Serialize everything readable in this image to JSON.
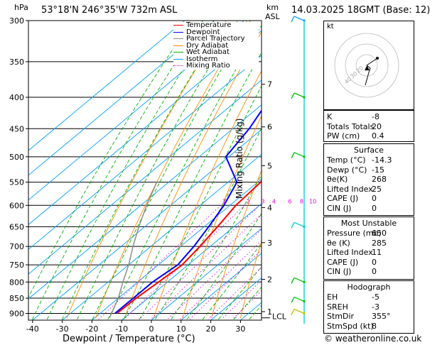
{
  "header": {
    "location": "53°18'N  246°35'W  732m  ASL",
    "datetime": "14.03.2025  18GMT  (Base: 12)",
    "pressure_unit": "hPa",
    "km_label": "km",
    "asl_label": "ASL"
  },
  "legend": [
    {
      "label": "Temperature",
      "color": "#ff0000",
      "style": "solid"
    },
    {
      "label": "Dewpoint",
      "color": "#0000ff",
      "style": "solid"
    },
    {
      "label": "Parcel Trajectory",
      "color": "#8c8c8c",
      "style": "solid"
    },
    {
      "label": "Dry Adiabat",
      "color": "#ff8c00",
      "style": "solid"
    },
    {
      "label": "Wet Adiabat",
      "color": "#00b000",
      "style": "solid"
    },
    {
      "label": "Isotherm",
      "color": "#00a0ff",
      "style": "solid"
    },
    {
      "label": "Mixing Ratio",
      "color": "#e000e0",
      "style": "dotted"
    }
  ],
  "chart_data": {
    "type": "line",
    "subtype": "skew-T log-P diagram",
    "xlabel": "Dewpoint / Temperature (°C)",
    "ylabel": "Mixing Ratio (g/kg)",
    "x_ticks": [
      -40,
      -30,
      -20,
      -10,
      0,
      10,
      20,
      30
    ],
    "pressure_levels": [
      300,
      350,
      400,
      450,
      500,
      550,
      600,
      650,
      700,
      750,
      800,
      850,
      900
    ],
    "km_ticks": [
      {
        "label": "1",
        "p": 894
      },
      {
        "label": "2",
        "p": 792
      },
      {
        "label": "3",
        "p": 690
      },
      {
        "label": "4",
        "p": 605
      },
      {
        "label": "5",
        "p": 517
      },
      {
        "label": "6",
        "p": 447
      },
      {
        "label": "7",
        "p": 381
      }
    ],
    "lcl_label": "LCL",
    "lcl_p": 915,
    "mixing_ratio_labels": [
      "1",
      "2",
      "3",
      "4",
      "6",
      "8",
      "10",
      "15",
      "20",
      "25"
    ],
    "mixing_ratio_values": [
      1,
      2,
      3,
      4,
      6,
      8,
      10,
      15,
      20,
      25
    ],
    "series": [
      {
        "name": "Temperature",
        "color": "#ff0000",
        "points": [
          [
            300,
            -49
          ],
          [
            350,
            -44.5
          ],
          [
            400,
            -38
          ],
          [
            450,
            -31
          ],
          [
            500,
            -24
          ],
          [
            550,
            -19
          ],
          [
            600,
            -18
          ],
          [
            650,
            -15.5
          ],
          [
            700,
            -13.5
          ],
          [
            750,
            -12
          ],
          [
            800,
            -13
          ],
          [
            850,
            -14
          ],
          [
            900,
            -14.3
          ]
        ]
      },
      {
        "name": "Dewpoint",
        "color": "#0000ff",
        "points": [
          [
            300,
            -65
          ],
          [
            330,
            -57
          ],
          [
            350,
            -53
          ],
          [
            400,
            -50
          ],
          [
            450,
            -44.5
          ],
          [
            500,
            -41
          ],
          [
            550,
            -27
          ],
          [
            600,
            -22
          ],
          [
            650,
            -18.5
          ],
          [
            700,
            -15.5
          ],
          [
            750,
            -13.5
          ],
          [
            800,
            -15
          ],
          [
            850,
            -15
          ],
          [
            900,
            -15
          ]
        ]
      },
      {
        "name": "Parcel Trajectory",
        "color": "#8c8c8c",
        "points": [
          [
            915,
            -15
          ],
          [
            850,
            -20
          ],
          [
            800,
            -25
          ],
          [
            750,
            -30
          ],
          [
            700,
            -36
          ],
          [
            650,
            -42
          ],
          [
            600,
            -48
          ],
          [
            550,
            -54
          ]
        ]
      }
    ]
  },
  "hodograph": {
    "label": "kt",
    "ring_labels": [
      "40",
      "30",
      "20"
    ]
  },
  "indices": [
    {
      "label": "K",
      "value": "-8"
    },
    {
      "label": "Totals Totals",
      "value": "20"
    },
    {
      "label": "PW (cm)",
      "value": "0.4"
    }
  ],
  "surface": {
    "title": "Surface",
    "rows": [
      {
        "label": "Temp (°C)",
        "value": "-14.3"
      },
      {
        "label": "Dewp (°C)",
        "value": "-15"
      },
      {
        "label": "θe(K)",
        "value": "268"
      },
      {
        "label": "Lifted Index",
        "value": "25"
      },
      {
        "label": "CAPE (J)",
        "value": "0"
      },
      {
        "label": "CIN (J)",
        "value": "0"
      }
    ]
  },
  "most_unstable": {
    "title": "Most Unstable",
    "rows": [
      {
        "label": "Pressure (mb)",
        "value": "650"
      },
      {
        "label": "θe (K)",
        "value": "285"
      },
      {
        "label": "Lifted Index",
        "value": "11"
      },
      {
        "label": "CAPE (J)",
        "value": "0"
      },
      {
        "label": "CIN (J)",
        "value": "0"
      }
    ]
  },
  "hodograph_table": {
    "title": "Hodograph",
    "rows": [
      {
        "label": "EH",
        "value": "-5"
      },
      {
        "label": "SREH",
        "value": "-3"
      },
      {
        "label": "StmDir",
        "value": "355°"
      },
      {
        "label": "StmSpd (kt)",
        "value": "8"
      }
    ]
  },
  "footer": {
    "copyright": "© weatheronline.co.uk"
  }
}
